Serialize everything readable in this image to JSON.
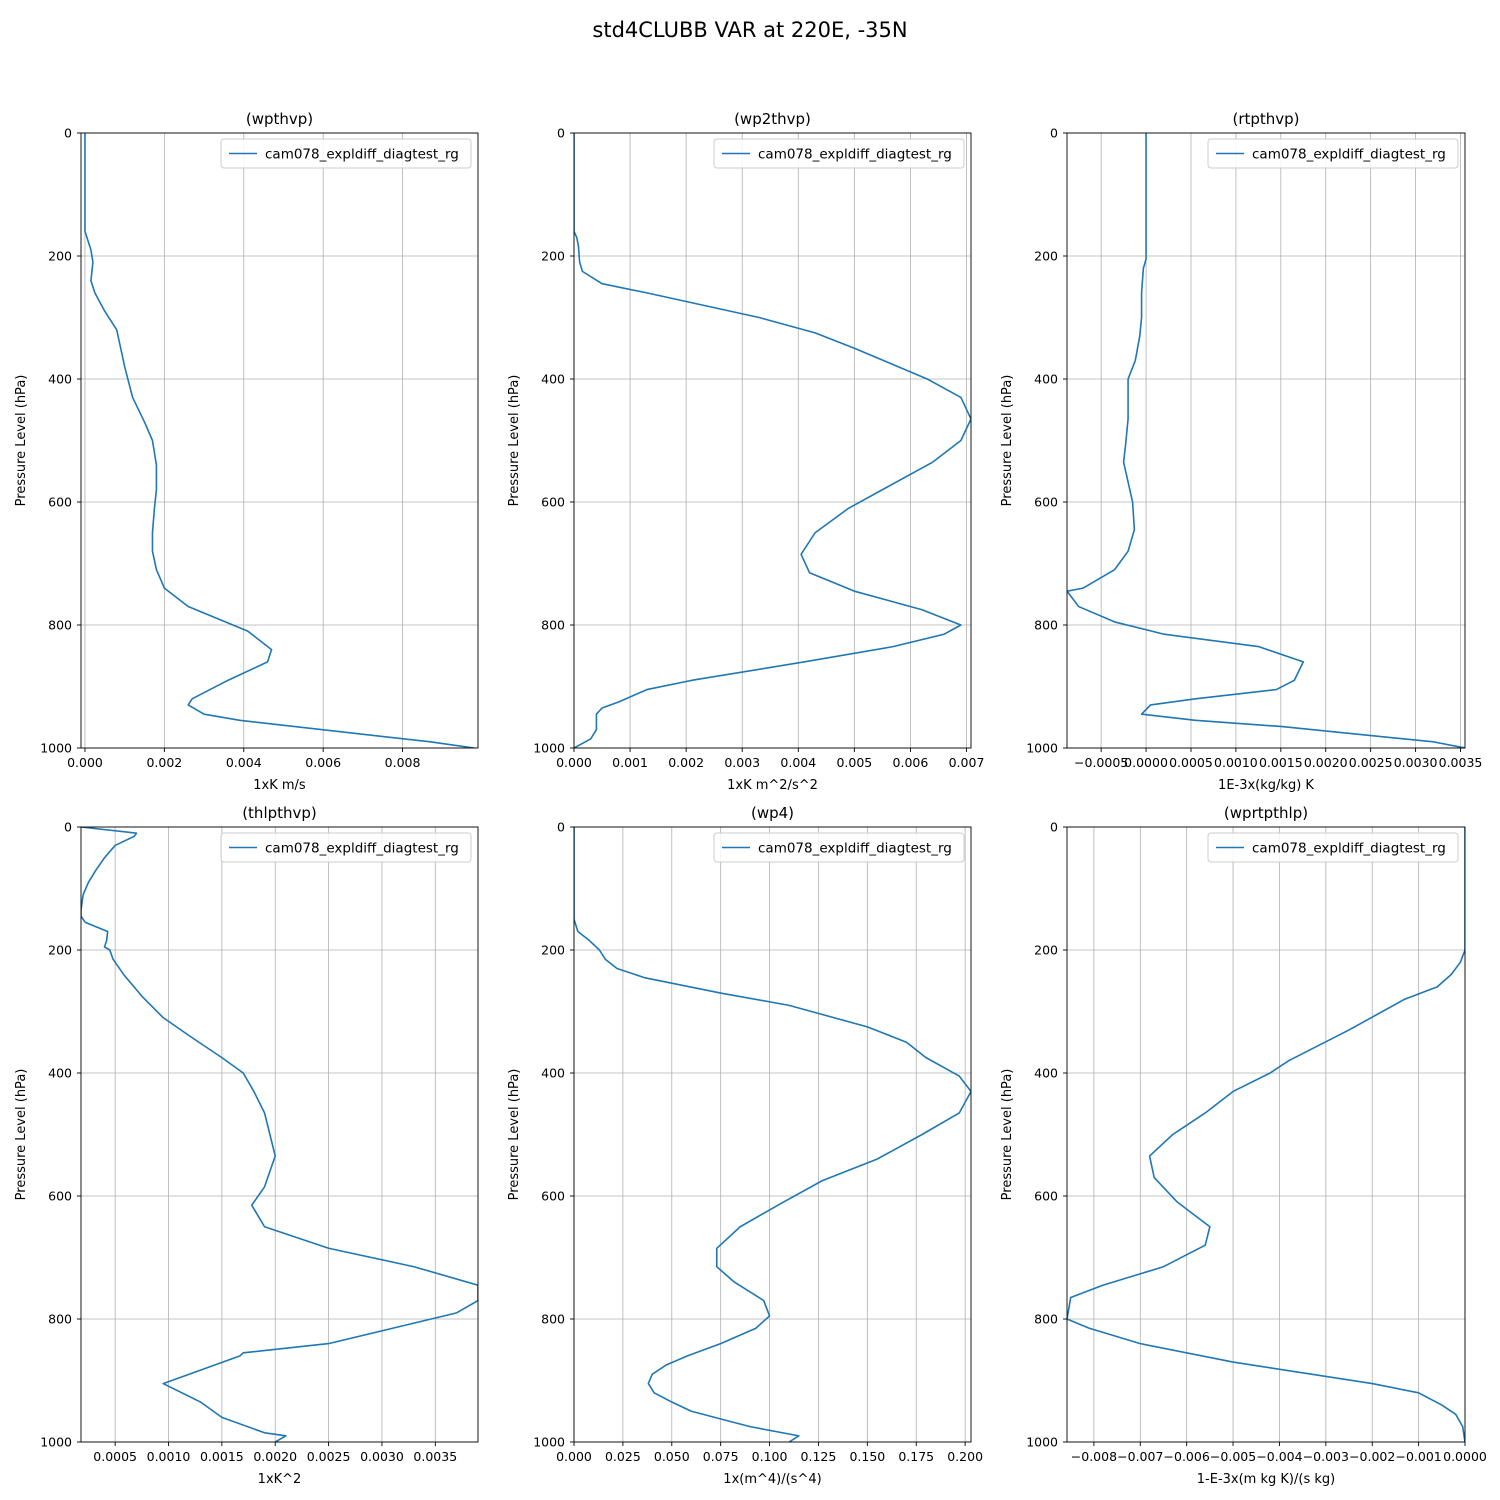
{
  "figure": {
    "title": "std4CLUBB VAR at 220E, -35N"
  },
  "colors": {
    "series": "#1f77b4",
    "grid": "#b0b0b0",
    "axis": "#000000",
    "legend_edge": "#cccccc"
  },
  "chart_data": [
    {
      "type": "line",
      "title": "(wpthvp)",
      "xlabel": "1xK m/s",
      "ylabel": "Pressure Level (hPa)",
      "xlim": [
        -0.0001,
        0.0099
      ],
      "ylim": [
        1000,
        0
      ],
      "xticks": [
        0.0,
        0.002,
        0.004,
        0.006,
        0.008
      ],
      "xtick_labels": [
        "0.000",
        "0.002",
        "0.004",
        "0.006",
        "0.008"
      ],
      "yticks": [
        0,
        200,
        400,
        600,
        800,
        1000
      ],
      "grid": true,
      "legend_position": "upper right",
      "series": [
        {
          "name": "cam078_expldiff_diagtest_rg",
          "x": [
            0.0,
            0.0,
            5e-05,
            0.00015,
            0.0002,
            0.00015,
            0.00025,
            0.0005,
            0.0008,
            0.0009,
            0.001,
            0.0012,
            0.0015,
            0.0017,
            0.0018,
            0.0018,
            0.00175,
            0.0017,
            0.0017,
            0.0018,
            0.002,
            0.0026,
            0.0041,
            0.0047,
            0.0046,
            0.0036,
            0.0027,
            0.0026,
            0.003,
            0.0039,
            0.0087,
            0.0098
          ],
          "y": [
            0,
            160,
            170,
            190,
            210,
            240,
            260,
            290,
            320,
            350,
            380,
            430,
            470,
            500,
            540,
            580,
            610,
            650,
            680,
            710,
            740,
            770,
            810,
            840,
            860,
            890,
            920,
            930,
            945,
            955,
            990,
            1000
          ]
        }
      ]
    },
    {
      "type": "line",
      "title": "(wp2thvp)",
      "xlabel": "1xK m^2/s^2",
      "ylabel": "Pressure Level (hPa)",
      "xlim": [
        0.0,
        0.00708
      ],
      "ylim": [
        1000,
        0
      ],
      "xticks": [
        0.0,
        0.001,
        0.002,
        0.003,
        0.004,
        0.005,
        0.006,
        0.007
      ],
      "xtick_labels": [
        "0.000",
        "0.001",
        "0.002",
        "0.003",
        "0.004",
        "0.005",
        "0.006",
        "0.007"
      ],
      "yticks": [
        0,
        200,
        400,
        600,
        800,
        1000
      ],
      "grid": true,
      "legend_position": "upper right",
      "series": [
        {
          "name": "cam078_expldiff_diagtest_rg",
          "x": [
            0.0,
            0.0,
            5e-05,
            8e-05,
            0.0001,
            0.00015,
            0.0005,
            0.0013,
            0.0033,
            0.0043,
            0.005,
            0.0063,
            0.0069,
            0.00708,
            0.0069,
            0.0064,
            0.0056,
            0.0049,
            0.0043,
            0.00405,
            0.0042,
            0.005,
            0.0062,
            0.0069,
            0.0066,
            0.0057,
            0.0041,
            0.0021,
            0.0013,
            0.0008,
            0.0005,
            0.0004,
            0.0004,
            0.0003,
            0.0001,
            0.0
          ],
          "y": [
            0,
            160,
            170,
            185,
            210,
            225,
            245,
            260,
            300,
            325,
            350,
            400,
            430,
            465,
            500,
            535,
            575,
            610,
            650,
            685,
            715,
            745,
            775,
            800,
            815,
            835,
            860,
            890,
            905,
            925,
            935,
            945,
            970,
            985,
            995,
            1000
          ]
        }
      ]
    },
    {
      "type": "line",
      "title": "(rtpthvp)",
      "xlabel": "1E-3x(kg/kg) K",
      "ylabel": "Pressure Level (hPa)",
      "xlim": [
        -0.00088,
        0.00355
      ],
      "ylim": [
        1000,
        0
      ],
      "xticks": [
        -0.0005,
        0.0,
        0.0005,
        0.001,
        0.0015,
        0.002,
        0.0025,
        0.003,
        0.0035
      ],
      "xtick_labels": [
        "−0.0005",
        "0.0000",
        "0.0005",
        "0.0010",
        "0.0015",
        "0.0020",
        "0.0025",
        "0.0030",
        "0.0035"
      ],
      "yticks": [
        0,
        200,
        400,
        600,
        800,
        1000
      ],
      "grid": true,
      "legend_position": "upper right",
      "series": [
        {
          "name": "cam078_expldiff_diagtest_rg",
          "x": [
            0.0,
            0.0,
            -3e-05,
            -5e-05,
            -5e-05,
            -7e-05,
            -0.00012,
            -0.0002,
            -0.0002,
            -0.00023,
            -0.00025,
            -0.00015,
            -0.00013,
            -0.0002,
            -0.00035,
            -0.0007,
            -0.00088,
            -0.00075,
            -0.00035,
            0.0002,
            0.00125,
            0.00175,
            0.0017,
            0.00165,
            0.00145,
            0.00055,
            5e-05,
            -5e-05,
            0.00055,
            0.0015,
            0.0032,
            0.00355
          ],
          "y": [
            0,
            205,
            220,
            260,
            300,
            330,
            370,
            400,
            465,
            510,
            535,
            600,
            645,
            680,
            710,
            740,
            745,
            770,
            795,
            815,
            835,
            860,
            875,
            890,
            905,
            920,
            930,
            945,
            955,
            965,
            990,
            1000
          ]
        }
      ]
    },
    {
      "type": "line",
      "title": "(thlpthvp)",
      "xlabel": "1xK^2",
      "ylabel": "Pressure Level (hPa)",
      "xlim": [
        0.00018,
        0.0039
      ],
      "ylim": [
        1000,
        0
      ],
      "xticks": [
        0.0005,
        0.001,
        0.0015,
        0.002,
        0.0025,
        0.003,
        0.0035
      ],
      "xtick_labels": [
        "0.0005",
        "0.0010",
        "0.0015",
        "0.0020",
        "0.0025",
        "0.0030",
        "0.0035"
      ],
      "yticks": [
        0,
        200,
        400,
        600,
        800,
        1000
      ],
      "grid": true,
      "legend_position": "upper right",
      "series": [
        {
          "name": "cam078_expldiff_diagtest_rg",
          "x": [
            0.00018,
            0.0007,
            0.00068,
            0.0005,
            0.0004,
            0.00032,
            0.00025,
            0.0002,
            0.00018,
            0.00018,
            0.00022,
            0.00043,
            0.00042,
            0.0004,
            0.00045,
            0.00048,
            0.00058,
            0.00075,
            0.00095,
            0.0012,
            0.0015,
            0.0017,
            0.0018,
            0.0019,
            0.00195,
            0.002,
            0.0019,
            0.00178,
            0.0019,
            0.0025,
            0.0033,
            0.0039,
            0.0039,
            0.0037,
            0.0031,
            0.0025,
            0.0017,
            0.00167,
            0.00095,
            0.0013,
            0.0015,
            0.0019,
            0.0021,
            0.002
          ],
          "y": [
            0,
            10,
            15,
            30,
            50,
            70,
            90,
            110,
            135,
            145,
            155,
            170,
            185,
            195,
            200,
            215,
            240,
            275,
            310,
            340,
            375,
            400,
            430,
            465,
            500,
            535,
            585,
            615,
            650,
            685,
            715,
            745,
            770,
            790,
            815,
            840,
            855,
            860,
            905,
            935,
            960,
            985,
            990,
            1000
          ]
        }
      ]
    },
    {
      "type": "line",
      "title": "(wp4)",
      "xlabel": "1x(m^4)/(s^4)",
      "ylabel": "Pressure Level (hPa)",
      "xlim": [
        0.0,
        0.203
      ],
      "ylim": [
        1000,
        0
      ],
      "xticks": [
        0.0,
        0.025,
        0.05,
        0.075,
        0.1,
        0.125,
        0.15,
        0.175,
        0.2
      ],
      "xtick_labels": [
        "0.000",
        "0.025",
        "0.050",
        "0.075",
        "0.100",
        "0.125",
        "0.150",
        "0.175",
        "0.200"
      ],
      "yticks": [
        0,
        200,
        400,
        600,
        800,
        1000
      ],
      "grid": true,
      "legend_position": "upper right",
      "series": [
        {
          "name": "cam078_expldiff_diagtest_rg",
          "x": [
            0.0,
            0.0,
            0.002,
            0.008,
            0.013,
            0.016,
            0.022,
            0.036,
            0.075,
            0.11,
            0.15,
            0.17,
            0.18,
            0.197,
            0.203,
            0.197,
            0.178,
            0.155,
            0.127,
            0.107,
            0.085,
            0.073,
            0.073,
            0.082,
            0.097,
            0.1,
            0.093,
            0.075,
            0.058,
            0.047,
            0.04,
            0.038,
            0.041,
            0.05,
            0.06,
            0.09,
            0.115,
            0.11
          ],
          "y": [
            0,
            150,
            170,
            185,
            200,
            215,
            230,
            245,
            270,
            290,
            325,
            350,
            375,
            405,
            430,
            465,
            500,
            540,
            575,
            610,
            650,
            685,
            715,
            740,
            770,
            795,
            815,
            840,
            860,
            875,
            890,
            905,
            920,
            935,
            950,
            975,
            990,
            1000
          ]
        }
      ]
    },
    {
      "type": "line",
      "title": "(wprtpthlp)",
      "xlabel": "1-E-3x(m kg K)/(s kg)",
      "ylabel": "Pressure Level (hPa)",
      "xlim": [
        -0.00858,
        0.0
      ],
      "ylim": [
        1000,
        0
      ],
      "xticks": [
        -0.008,
        -0.007,
        -0.006,
        -0.005,
        -0.004,
        -0.003,
        -0.002,
        -0.001,
        0.0
      ],
      "xtick_labels": [
        "−0.008",
        "−0.007",
        "−0.006",
        "−0.005",
        "−0.004",
        "−0.003",
        "−0.002",
        "−0.001",
        "0.0000"
      ],
      "yticks": [
        0,
        200,
        400,
        600,
        800,
        1000
      ],
      "grid": true,
      "legend_position": "upper right",
      "series": [
        {
          "name": "cam078_expldiff_diagtest_rg",
          "x": [
            0.0,
            0.0,
            -0.0001,
            -0.0003,
            -0.0006,
            -0.0013,
            -0.0025,
            -0.0038,
            -0.0042,
            -0.005,
            -0.0056,
            -0.0062,
            -0.0063,
            -0.0068,
            -0.0067,
            -0.0062,
            -0.0055,
            -0.0056,
            -0.0065,
            -0.0078,
            -0.0085,
            -0.00858,
            -0.0081,
            -0.007,
            -0.005,
            -0.002,
            -0.001,
            -0.0005,
            -0.0002,
            -5e-05,
            0.0
          ],
          "y": [
            0,
            200,
            220,
            240,
            260,
            280,
            330,
            380,
            400,
            430,
            465,
            495,
            500,
            535,
            570,
            610,
            650,
            680,
            715,
            745,
            765,
            800,
            815,
            840,
            870,
            905,
            920,
            940,
            955,
            975,
            1000
          ]
        }
      ]
    }
  ]
}
